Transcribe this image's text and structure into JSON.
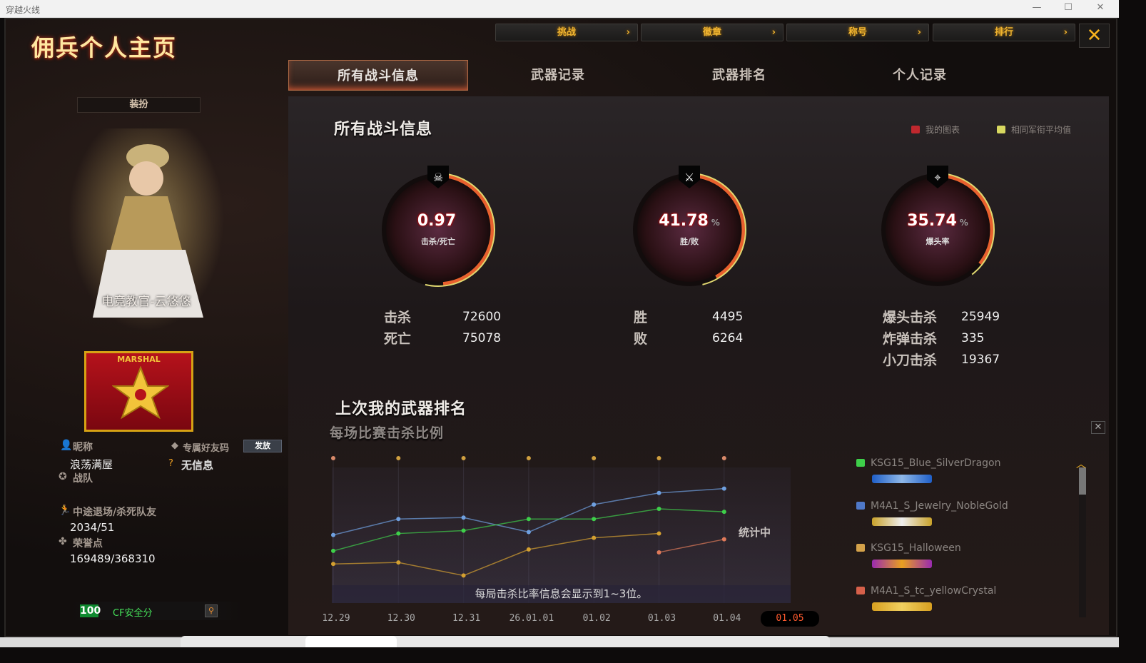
{
  "window": {
    "title": "穿越火线",
    "min": "—",
    "max": "☐",
    "close": "✕"
  },
  "header": {
    "title": "佣兵个人主页",
    "top_buttons": [
      {
        "label": "挑战"
      },
      {
        "label": "徽章"
      },
      {
        "label": "称号"
      },
      {
        "label": "排行"
      }
    ],
    "chevron": "›",
    "close": "✕"
  },
  "tabs": [
    {
      "label": "所有战斗信息",
      "active": true
    },
    {
      "label": "武器记录"
    },
    {
      "label": "武器排名"
    },
    {
      "label": "个人记录"
    }
  ],
  "profile": {
    "dress_button": "装扮",
    "character_name": "电竞教官-云悠悠",
    "rank": "MARSHAL",
    "nickname_label": "昵称",
    "nickname": "浪荡满屋",
    "friend_code_label": "专属好友码",
    "send_button": "发放",
    "friend_code_value": "无信息",
    "clan_label": "战队",
    "quit_label": "中途退场/杀死队友",
    "quit_value": "2034/51",
    "honor_label": "荣誉点",
    "honor_value": "169489/368310",
    "safety_score": "100",
    "safety_label": "CF安全分"
  },
  "battle": {
    "title": "所有战斗信息",
    "legend": [
      {
        "label": "我的图表",
        "color": "#c0282e"
      },
      {
        "label": "相同军衔平均值",
        "color": "#d8d860"
      }
    ],
    "gauges": [
      {
        "icon": "skull-icon",
        "value": "0.97",
        "unit": "",
        "label": "击杀/死亡",
        "fill": 0.97,
        "max": 2
      },
      {
        "icon": "crossed-rifles-icon",
        "value": "41.78",
        "unit": "%",
        "label": "胜/败",
        "fill": 41.78,
        "max": 100
      },
      {
        "icon": "crosshair-rifle-icon",
        "value": "35.74",
        "unit": "%",
        "label": "爆头率",
        "fill": 35.74,
        "max": 100
      }
    ],
    "stats": [
      [
        {
          "label": "击杀",
          "value": "72600"
        },
        {
          "label": "死亡",
          "value": "75078"
        }
      ],
      [
        {
          "label": "胜",
          "value": "4495"
        },
        {
          "label": "败",
          "value": "6264"
        }
      ],
      [
        {
          "label": "爆头击杀",
          "value": "25949"
        },
        {
          "label": "炸弹击杀",
          "value": "335"
        },
        {
          "label": "小刀击杀",
          "value": "19367"
        }
      ]
    ]
  },
  "weapon_rank": {
    "title": "上次我的武器排名",
    "subtitle": "每场比赛击杀比例",
    "note": "每局击杀比率信息会显示到1~3位。",
    "status": "统计中",
    "close": "✕",
    "weapons": [
      {
        "name": "KSG15_Blue_SilverDragon",
        "color": "#3ecf4a",
        "image_colors": [
          "#1f5fc8",
          "#8fb8e8"
        ]
      },
      {
        "name": "M4A1_S_Jewelry_NobleGold",
        "color": "#4f78c8",
        "image_colors": [
          "#c9a22a",
          "#eee"
        ]
      },
      {
        "name": "KSG15_Halloween",
        "color": "#d4a24a",
        "image_colors": [
          "#9a2ab0",
          "#e8a020"
        ]
      },
      {
        "name": "M4A1_S_tc_yellowCrystal",
        "color": "#d6604a",
        "image_colors": [
          "#d8a020",
          "#f0d060"
        ]
      }
    ]
  },
  "chart_data": {
    "type": "line",
    "xlabel": "",
    "ylabel": "",
    "categories": [
      "12.29",
      "12.30",
      "12.31",
      "26.01.01",
      "01.02",
      "01.03",
      "01.04"
    ],
    "current_label": "01.05",
    "top_markers": [
      "#d98a6a",
      "#d0a040",
      "#d0a040",
      "#d0a040",
      "#d0a040",
      "#d0a040",
      "#d98a6a"
    ],
    "series": [
      {
        "color": "#6fa0e0",
        "values": [
          47,
          58,
          59,
          49,
          68,
          76,
          79
        ]
      },
      {
        "color": "#3ecf4a",
        "values": [
          36,
          48,
          50,
          58,
          58,
          65,
          63
        ]
      },
      {
        "color": "#d4a030",
        "values": [
          27,
          28,
          19,
          37,
          45,
          48,
          null
        ]
      },
      {
        "color": "#e07a5a",
        "values": [
          null,
          null,
          null,
          null,
          null,
          35,
          44
        ]
      }
    ]
  }
}
